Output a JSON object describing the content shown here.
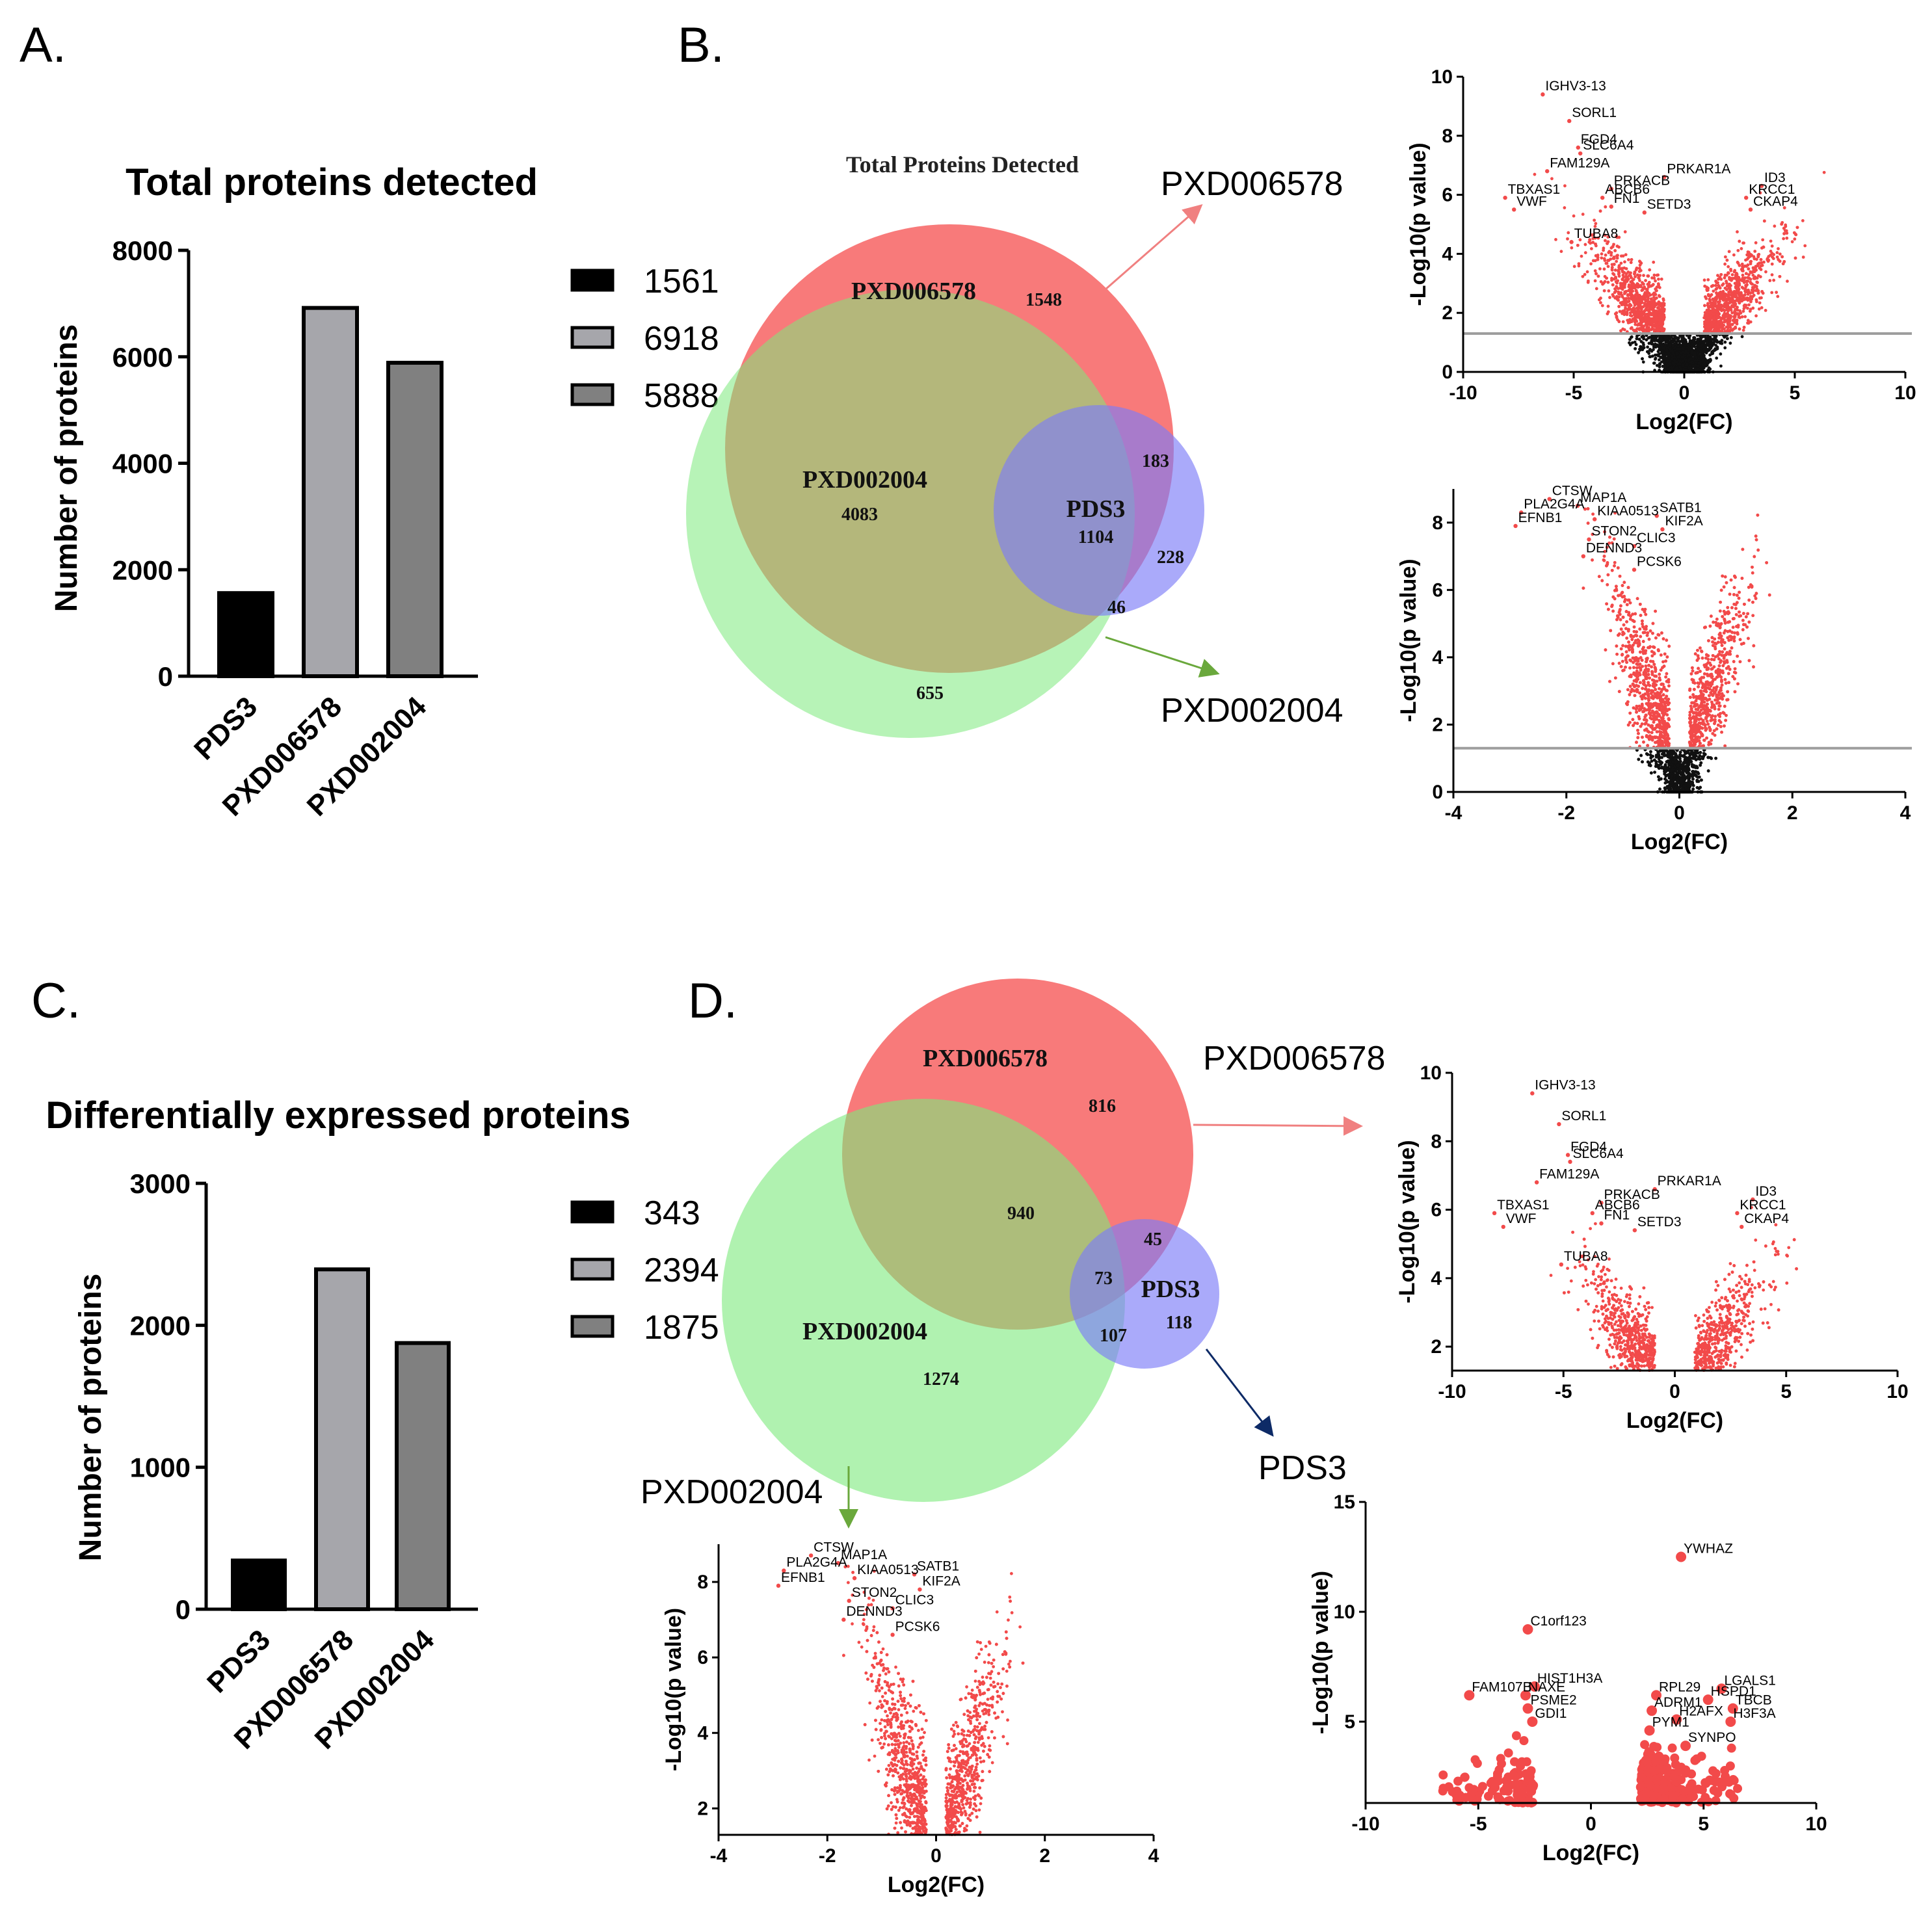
{
  "panels": {
    "a": "A.",
    "b": "B.",
    "c": "C.",
    "d": "D."
  },
  "chart_data": [
    {
      "id": "A",
      "type": "bar",
      "title": "Total proteins detected",
      "ylabel": "Number of proteins",
      "categories": [
        "PDS3",
        "PXD006578",
        "PXD002004"
      ],
      "values": [
        1561,
        6918,
        5888
      ],
      "colors": [
        "#000000",
        "#a6a6ab",
        "#808080"
      ],
      "ylim": [
        0,
        8000
      ],
      "yticks": [
        0,
        2000,
        4000,
        6000,
        8000
      ],
      "legend": [
        "1561",
        "6918",
        "5888"
      ]
    },
    {
      "id": "C",
      "type": "bar",
      "title": "Differentially expressed proteins",
      "ylabel": "Number of proteins",
      "categories": [
        "PDS3",
        "PXD006578",
        "PXD002004"
      ],
      "values": [
        343,
        2394,
        1875
      ],
      "colors": [
        "#000000",
        "#a6a6ab",
        "#808080"
      ],
      "ylim": [
        0,
        3000
      ],
      "yticks": [
        0,
        1000,
        2000,
        3000
      ],
      "legend": [
        "343",
        "2394",
        "1875"
      ]
    },
    {
      "id": "B-venn",
      "type": "venn",
      "title": "Total Proteins Detected",
      "sets": [
        "PXD006578",
        "PXD002004",
        "PDS3"
      ],
      "regions": {
        "PXD006578_only": "1548",
        "PXD002004_only": "655",
        "PXD006578_PXD002004": "4083",
        "PXD006578_PDS3": "183",
        "all_three": "1104",
        "PDS3_only": "228",
        "PXD002004_PDS3": "46"
      },
      "colors": {
        "PXD006578": "#f87a7a",
        "PXD002004": "#7bea7b",
        "PDS3": "#7d7df8"
      }
    },
    {
      "id": "D-venn",
      "type": "venn",
      "title": "",
      "sets": [
        "PXD006578",
        "PXD002004",
        "PDS3"
      ],
      "regions": {
        "PXD006578_only": "816",
        "PXD006578_PXD002004": "940",
        "PXD002004_only": "1274",
        "PXD006578_PDS3": "45",
        "all_three": "73",
        "PXD002004_PDS3": "107",
        "PDS3_only": "118"
      },
      "colors": {
        "PXD006578": "#f87a7a",
        "PXD002004": "#7bea7b",
        "PDS3": "#7d7df8"
      }
    },
    {
      "id": "B-volcano-PXD006578",
      "type": "scatter",
      "xlabel": "Log2(FC)",
      "ylabel": "-Log10(p value)",
      "xlim": [
        -10,
        10
      ],
      "ylim": [
        0,
        10
      ],
      "xticks": [
        -10,
        -5,
        0,
        5,
        10
      ],
      "yticks": [
        0,
        2,
        4,
        6,
        8,
        10
      ],
      "threshold": 1.3,
      "labels": [
        {
          "text": "IGHV3-13",
          "x": -6.4,
          "y": 9.4
        },
        {
          "text": "SORL1",
          "x": -5.2,
          "y": 8.5
        },
        {
          "text": "FGD4",
          "x": -4.8,
          "y": 7.6
        },
        {
          "text": "SLC6A4",
          "x": -4.7,
          "y": 7.4
        },
        {
          "text": "FAM129A",
          "x": -6.2,
          "y": 6.8
        },
        {
          "text": "PRKAR1A",
          "x": -0.9,
          "y": 6.6
        },
        {
          "text": "PRKACB",
          "x": -3.3,
          "y": 6.2
        },
        {
          "text": "ID3",
          "x": 3.5,
          "y": 6.3
        },
        {
          "text": "TBXAS1",
          "x": -8.1,
          "y": 5.9
        },
        {
          "text": "ABCB6",
          "x": -3.7,
          "y": 5.9
        },
        {
          "text": "KRCC1",
          "x": 2.8,
          "y": 5.9
        },
        {
          "text": "VWF",
          "x": -7.7,
          "y": 5.5
        },
        {
          "text": "FN1",
          "x": -3.3,
          "y": 5.6
        },
        {
          "text": "SETD3",
          "x": -1.8,
          "y": 5.4
        },
        {
          "text": "CKAP4",
          "x": 3.0,
          "y": 5.5
        },
        {
          "text": "TUBA8",
          "x": -5.1,
          "y": 4.4
        }
      ]
    },
    {
      "id": "B-volcano-PXD002004",
      "type": "scatter",
      "xlabel": "Log2(FC)",
      "ylabel": "-Log10(p value)",
      "xlim": [
        -4,
        4
      ],
      "ylim": [
        0,
        9
      ],
      "xticks": [
        -4,
        -2,
        0,
        2,
        4
      ],
      "yticks": [
        0,
        2,
        4,
        6,
        8
      ],
      "threshold": 1.3,
      "labels": [
        {
          "text": "CTSW",
          "x": -2.3,
          "y": 8.7
        },
        {
          "text": "MAP1A",
          "x": -1.8,
          "y": 8.5
        },
        {
          "text": "PLA2G4A",
          "x": -2.8,
          "y": 8.3
        },
        {
          "text": "SATB1",
          "x": -0.4,
          "y": 8.2
        },
        {
          "text": "EFNB1",
          "x": -2.9,
          "y": 7.9
        },
        {
          "text": "KIAA0513",
          "x": -1.5,
          "y": 8.1
        },
        {
          "text": "KIF2A",
          "x": -0.3,
          "y": 7.8
        },
        {
          "text": "STON2",
          "x": -1.6,
          "y": 7.5
        },
        {
          "text": "CLIC3",
          "x": -0.8,
          "y": 7.3
        },
        {
          "text": "DENND3",
          "x": -1.7,
          "y": 7.0
        },
        {
          "text": "PCSK6",
          "x": -0.8,
          "y": 6.6
        }
      ]
    },
    {
      "id": "D-volcano-PXD006578",
      "type": "scatter",
      "xlabel": "Log2(FC)",
      "ylabel": "-Log10(p value)",
      "xlim": [
        -10,
        10
      ],
      "ylim": [
        1.3,
        10
      ],
      "xticks": [
        -10,
        -5,
        0,
        5,
        10
      ],
      "yticks": [
        2,
        4,
        6,
        8,
        10
      ],
      "labels": [
        {
          "text": "IGHV3-13",
          "x": -6.4,
          "y": 9.4
        },
        {
          "text": "SORL1",
          "x": -5.2,
          "y": 8.5
        },
        {
          "text": "FGD4",
          "x": -4.8,
          "y": 7.6
        },
        {
          "text": "SLC6A4",
          "x": -4.7,
          "y": 7.4
        },
        {
          "text": "FAM129A",
          "x": -6.2,
          "y": 6.8
        },
        {
          "text": "PRKAR1A",
          "x": -0.9,
          "y": 6.6
        },
        {
          "text": "PRKACB",
          "x": -3.3,
          "y": 6.2
        },
        {
          "text": "ID3",
          "x": 3.5,
          "y": 6.3
        },
        {
          "text": "TBXAS1",
          "x": -8.1,
          "y": 5.9
        },
        {
          "text": "ABCB6",
          "x": -3.7,
          "y": 5.9
        },
        {
          "text": "KRCC1",
          "x": 2.8,
          "y": 5.9
        },
        {
          "text": "VWF",
          "x": -7.7,
          "y": 5.5
        },
        {
          "text": "FN1",
          "x": -3.3,
          "y": 5.6
        },
        {
          "text": "SETD3",
          "x": -1.8,
          "y": 5.4
        },
        {
          "text": "CKAP4",
          "x": 3.0,
          "y": 5.5
        },
        {
          "text": "TUBA8",
          "x": -5.1,
          "y": 4.4
        }
      ]
    },
    {
      "id": "D-volcano-PXD002004",
      "type": "scatter",
      "xlabel": "Log2(FC)",
      "ylabel": "-Log10(p value)",
      "xlim": [
        -4,
        4
      ],
      "ylim": [
        1.3,
        9
      ],
      "xticks": [
        -4,
        -2,
        0,
        2,
        4
      ],
      "yticks": [
        2,
        4,
        6,
        8
      ],
      "labels": [
        {
          "text": "CTSW",
          "x": -2.3,
          "y": 8.7
        },
        {
          "text": "MAP1A",
          "x": -1.8,
          "y": 8.5
        },
        {
          "text": "PLA2G4A",
          "x": -2.8,
          "y": 8.3
        },
        {
          "text": "SATB1",
          "x": -0.4,
          "y": 8.2
        },
        {
          "text": "EFNB1",
          "x": -2.9,
          "y": 7.9
        },
        {
          "text": "KIAA0513",
          "x": -1.5,
          "y": 8.1
        },
        {
          "text": "KIF2A",
          "x": -0.3,
          "y": 7.8
        },
        {
          "text": "STON2",
          "x": -1.6,
          "y": 7.5
        },
        {
          "text": "CLIC3",
          "x": -0.8,
          "y": 7.3
        },
        {
          "text": "DENND3",
          "x": -1.7,
          "y": 7.0
        },
        {
          "text": "PCSK6",
          "x": -0.8,
          "y": 6.6
        }
      ]
    },
    {
      "id": "D-volcano-PDS3",
      "type": "scatter",
      "xlabel": "Log2(FC)",
      "ylabel": "-Log10(p value)",
      "xlim": [
        -10,
        10
      ],
      "ylim": [
        1.3,
        15
      ],
      "xticks": [
        -10,
        -5,
        0,
        5,
        10
      ],
      "yticks": [
        5,
        10,
        15
      ],
      "labels": [
        {
          "text": "YWHAZ",
          "x": 4.0,
          "y": 12.5
        },
        {
          "text": "C1orf123",
          "x": -2.8,
          "y": 9.2
        },
        {
          "text": "HIST1H3A",
          "x": -2.5,
          "y": 6.6
        },
        {
          "text": "LGALS1",
          "x": 5.8,
          "y": 6.5
        },
        {
          "text": "FAM107B",
          "x": -5.4,
          "y": 6.2
        },
        {
          "text": "RPL29",
          "x": 2.9,
          "y": 6.2
        },
        {
          "text": "NAXE",
          "x": -2.9,
          "y": 6.2
        },
        {
          "text": "HSPD1",
          "x": 5.2,
          "y": 6.0
        },
        {
          "text": "TBCB",
          "x": 6.3,
          "y": 5.6
        },
        {
          "text": "PSME2",
          "x": -2.8,
          "y": 5.6
        },
        {
          "text": "ADRM1",
          "x": 2.7,
          "y": 5.5
        },
        {
          "text": "H2AFX",
          "x": 3.8,
          "y": 5.1
        },
        {
          "text": "H3F3A",
          "x": 6.2,
          "y": 5.0
        },
        {
          "text": "GDI1",
          "x": -2.6,
          "y": 5.0
        },
        {
          "text": "PYM1",
          "x": 2.6,
          "y": 4.6
        },
        {
          "text": "SYNPO",
          "x": 4.2,
          "y": 3.9
        }
      ]
    }
  ],
  "dataset_labels": {
    "b_top": "PXD006578",
    "b_bottom": "PXD002004",
    "d_top": "PXD006578",
    "d_left": "PXD002004",
    "d_right": "PDS3"
  }
}
